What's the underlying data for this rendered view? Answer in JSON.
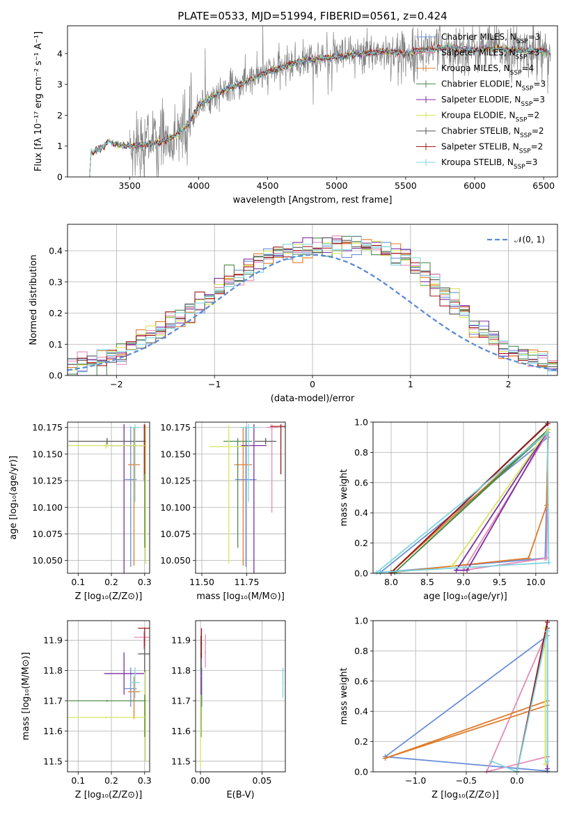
{
  "title": "PLATE=0533, MJD=51994, FIBERID=0561, z=0.424",
  "colors": {
    "chabrier_miles": "#6a8fd6",
    "salpeter_miles": "#e58ab8",
    "kroupa_miles": "#e07b28",
    "chabrier_elodie": "#4d8a4d",
    "salpeter_elodie": "#7a2fa0",
    "kroupa_elodie": "#d6e65a",
    "chabrier_stelib": "#555555",
    "salpeter_stelib": "#a01818",
    "kroupa_stelib": "#7dd6e0",
    "data": "#808080",
    "normal": "#5b8bd6",
    "grid": "#b0b0b0"
  },
  "chart_data": [
    {
      "id": "spectrum",
      "type": "line",
      "xlabel": "wavelength [Angstrom, rest frame]",
      "ylabel": "Flux [fλ 10⁻¹⁷ erg cm⁻² s⁻¹ A⁻¹]",
      "xlim": [
        3050,
        6600
      ],
      "ylim": [
        0,
        4.9
      ],
      "xticks": [
        "3500",
        "4000",
        "4500",
        "5000",
        "5500",
        "6000",
        "6500"
      ],
      "yticks": [
        "0",
        "1",
        "2",
        "3",
        "4"
      ],
      "legend_position": "top-right",
      "legend": [
        {
          "key": "chabrier_miles",
          "label": "Chabrier MILES, N",
          "sub": "SSP",
          "suffix": "=3"
        },
        {
          "key": "salpeter_miles",
          "label": "Salpeter MILES, N",
          "sub": "SSP",
          "suffix": "=3"
        },
        {
          "key": "kroupa_miles",
          "label": "Kroupa MILES, N",
          "sub": "SSP",
          "suffix": "=4"
        },
        {
          "key": "chabrier_elodie",
          "label": "Chabrier ELODIE, N",
          "sub": "SSP",
          "suffix": "=3"
        },
        {
          "key": "salpeter_elodie",
          "label": "Salpeter ELODIE, N",
          "sub": "SSP",
          "suffix": "=3"
        },
        {
          "key": "kroupa_elodie",
          "label": "Kroupa ELODIE, N",
          "sub": "SSP",
          "suffix": "=2"
        },
        {
          "key": "chabrier_stelib",
          "label": "Chabrier STELIB, N",
          "sub": "SSP",
          "suffix": "=2"
        },
        {
          "key": "salpeter_stelib",
          "label": "Salpeter STELIB, N",
          "sub": "SSP",
          "suffix": "=2"
        },
        {
          "key": "kroupa_stelib",
          "label": "Kroupa STELIB, N",
          "sub": "SSP",
          "suffix": "=3"
        }
      ],
      "model_continuum": {
        "x": [
          3210,
          3220,
          3300,
          3350,
          3400,
          3500,
          3600,
          3700,
          3800,
          3900,
          3950,
          4000,
          4100,
          4200,
          4300,
          4400,
          4500,
          4600,
          4700,
          4800,
          4900,
          5000,
          5100,
          5200,
          5300,
          5400,
          5500,
          5600,
          5700,
          5800,
          5900,
          6000,
          6100,
          6200,
          6300,
          6400,
          6550
        ],
        "y": [
          0.0,
          0.75,
          0.95,
          1.15,
          1.05,
          1.0,
          1.05,
          1.1,
          1.25,
          1.6,
          1.9,
          2.3,
          2.6,
          2.85,
          3.0,
          3.2,
          3.4,
          3.55,
          3.7,
          3.8,
          3.85,
          3.9,
          3.95,
          4.0,
          4.05,
          4.05,
          4.0,
          4.1,
          4.15,
          4.2,
          4.15,
          4.1,
          4.2,
          4.15,
          4.1,
          4.1,
          4.05
        ]
      },
      "data_range": [
        3500,
        6550
      ]
    },
    {
      "id": "residuals",
      "type": "histogram",
      "xlabel": "(data-model)/error",
      "ylabel": "Normed distribution",
      "xlim": [
        -2.5,
        2.5
      ],
      "ylim": [
        0,
        0.485
      ],
      "xticks": [
        "−2",
        "−1",
        "0",
        "1",
        "2"
      ],
      "yticks": [
        "0.0",
        "0.1",
        "0.2",
        "0.3",
        "0.4"
      ],
      "bin_width": 0.1,
      "reference_curve": {
        "label": "𝒩(0, 1)",
        "mean": 0,
        "sigma": 1,
        "scale": 0.97
      }
    },
    {
      "id": "age_vs_Z",
      "type": "scatter",
      "xlabel": "Z [log₁₀(Z/Z⊙)]",
      "ylabel": "age  [log₁₀(age/yr)]",
      "xlim": [
        0.068,
        0.315
      ],
      "ylim": [
        10.038,
        10.18
      ],
      "xticks": [
        "0.1",
        "0.2",
        "0.3"
      ],
      "yticks": [
        "10.050",
        "10.075",
        "10.100",
        "10.125",
        "10.150",
        "10.175"
      ],
      "points": [
        {
          "key": "chabrier_miles",
          "x": 0.258,
          "xerr": 0.018,
          "y": 10.126,
          "yerr": [
            0.082,
            0.05
          ]
        },
        {
          "key": "salpeter_miles",
          "x": 0.298,
          "xerr": 0.003,
          "y": 10.175,
          "yerr": [
            0.05,
            0.003
          ]
        },
        {
          "key": "kroupa_miles",
          "x": 0.268,
          "xerr": 0.018,
          "y": 10.14,
          "yerr": [
            0.095,
            0.035
          ]
        },
        {
          "key": "chabrier_elodie",
          "x": 0.3,
          "xerr": 0.002,
          "y": 10.162,
          "yerr": [
            0.1,
            0.015
          ]
        },
        {
          "key": "salpeter_elodie",
          "x": 0.238,
          "xerr": 0.06,
          "y": 10.158,
          "yerr": [
            0.12,
            0.02
          ]
        },
        {
          "key": "kroupa_elodie",
          "x": 0.303,
          "xerr": 0.002,
          "y": 10.157,
          "yerr": [
            0.11,
            0.02
          ]
        },
        {
          "key": "chabrier_stelib",
          "x": 0.187,
          "xerr": 0.116,
          "y": 10.162,
          "yerr": [
            0.003,
            0.003
          ]
        },
        {
          "key": "salpeter_stelib",
          "x": 0.3,
          "xerr": 0.002,
          "y": 10.176,
          "yerr": [
            0.045,
            0.002
          ]
        },
        {
          "key": "kroupa_stelib",
          "x": 0.271,
          "xerr": 0.015,
          "y": 10.175,
          "yerr": [
            0.07,
            0.003
          ]
        },
        {
          "key": "kroupa_elodie",
          "x": 0.184,
          "xerr": 0.116,
          "y": 10.158,
          "yerr": [
            0.003,
            0.003
          ]
        }
      ]
    },
    {
      "id": "age_vs_mass",
      "type": "scatter",
      "xlabel": "mass [log₁₀(M/M⊙)]",
      "ylabel": "",
      "xlim": [
        11.465,
        11.965
      ],
      "ylim": [
        10.038,
        10.18
      ],
      "xticks": [
        "11.50",
        "11.75"
      ],
      "yticks": [
        "10.050",
        "10.075",
        "10.100",
        "10.125",
        "10.150",
        "10.175"
      ],
      "points": [
        {
          "key": "chabrier_miles",
          "x": 11.745,
          "xerr": 0.06,
          "y": 10.126,
          "yerr": [
            0.082,
            0.05
          ]
        },
        {
          "key": "salpeter_miles",
          "x": 11.89,
          "xerr": 0.03,
          "y": 10.175,
          "yerr": [
            0.08,
            0.003
          ]
        },
        {
          "key": "kroupa_miles",
          "x": 11.73,
          "xerr": 0.05,
          "y": 10.14,
          "yerr": [
            0.095,
            0.035
          ]
        },
        {
          "key": "chabrier_elodie",
          "x": 11.7,
          "xerr": 0.08,
          "y": 10.162,
          "yerr": [
            0.1,
            0.003
          ]
        },
        {
          "key": "salpeter_elodie",
          "x": 11.79,
          "xerr": 0.07,
          "y": 10.158,
          "yerr": [
            0.12,
            0.02
          ]
        },
        {
          "key": "kroupa_elodie",
          "x": 11.65,
          "xerr": 0.11,
          "y": 10.157,
          "yerr": [
            0.11,
            0.02
          ]
        },
        {
          "key": "chabrier_stelib",
          "x": 11.855,
          "xerr": 0.06,
          "y": 10.162,
          "yerr": [
            0.003,
            0.003
          ]
        },
        {
          "key": "salpeter_stelib",
          "x": 11.94,
          "xerr": 0.06,
          "y": 10.176,
          "yerr": [
            0.045,
            0.002
          ]
        },
        {
          "key": "kroupa_stelib",
          "x": 11.76,
          "xerr": 0.05,
          "y": 10.175,
          "yerr": [
            0.07,
            0.003
          ]
        }
      ]
    },
    {
      "id": "weight_vs_age",
      "type": "line",
      "xlabel": "age  [log₁₀(age/yr)]",
      "ylabel": "mass weight",
      "xlim": [
        7.75,
        10.3
      ],
      "ylim": [
        0,
        1
      ],
      "xticks": [
        "8.0",
        "8.5",
        "9.0",
        "9.5",
        "10.0"
      ],
      "yticks": [
        "0.0",
        "0.2",
        "0.4",
        "0.6",
        "0.8",
        "1.0"
      ],
      "series": [
        {
          "key": "chabrier_miles",
          "x": [
            7.85,
            10.17,
            10.13,
            7.85
          ],
          "y": [
            0.005,
            0.9,
            0.1,
            0.005
          ]
        },
        {
          "key": "salpeter_miles",
          "x": [
            9.0,
            10.15,
            10.17,
            9.0
          ],
          "y": [
            0.02,
            0.1,
            0.93,
            0.02
          ]
        },
        {
          "key": "kroupa_miles",
          "x": [
            8.0,
            9.9,
            10.15,
            10.17,
            8.0
          ],
          "y": [
            0.005,
            0.1,
            0.45,
            0.95,
            0.005
          ]
        },
        {
          "key": "chabrier_elodie",
          "x": [
            8.05,
            10.17,
            10.15,
            8.05
          ],
          "y": [
            0.005,
            0.95,
            0.93,
            0.005
          ]
        },
        {
          "key": "salpeter_elodie",
          "x": [
            8.9,
            9.05,
            10.17,
            8.9
          ],
          "y": [
            0.02,
            0.02,
            0.95,
            0.02
          ]
        },
        {
          "key": "kroupa_elodie",
          "x": [
            8.85,
            10.17,
            8.85
          ],
          "y": [
            0.05,
            0.95,
            0.05
          ]
        },
        {
          "key": "chabrier_stelib",
          "x": [
            8.0,
            10.16
          ],
          "y": [
            0.005,
            0.99
          ]
        },
        {
          "key": "salpeter_stelib",
          "x": [
            8.0,
            10.17
          ],
          "y": [
            0.005,
            0.99
          ]
        },
        {
          "key": "kroupa_stelib",
          "x": [
            7.8,
            10.16,
            10.18,
            7.8
          ],
          "y": [
            0.005,
            0.93,
            0.07,
            0.005
          ]
        }
      ]
    },
    {
      "id": "mass_vs_Z",
      "type": "scatter",
      "xlabel": "Z [log₁₀(Z/Z⊙)]",
      "ylabel": "mass [log₁₀(M/M⊙)]",
      "xlim": [
        0.068,
        0.315
      ],
      "ylim": [
        11.465,
        11.965
      ],
      "xticks": [
        "0.1",
        "0.2",
        "0.3"
      ],
      "yticks": [
        "11.5",
        "11.6",
        "11.7",
        "11.8",
        "11.9"
      ],
      "points": [
        {
          "key": "chabrier_miles",
          "x": 0.258,
          "xerr": 0.018,
          "y": 11.74,
          "yerr": [
            0.06,
            0.07
          ]
        },
        {
          "key": "salpeter_miles",
          "x": 0.298,
          "xerr": 0.03,
          "y": 11.91,
          "yerr": [
            0.04,
            0.02
          ]
        },
        {
          "key": "kroupa_miles",
          "x": 0.268,
          "xerr": 0.018,
          "y": 11.73,
          "yerr": [
            0.09,
            0.05
          ]
        },
        {
          "key": "chabrier_elodie",
          "x": 0.3,
          "xerr": 0.002,
          "y": 11.7,
          "yerr": [
            0.12,
            0.02
          ]
        },
        {
          "key": "salpeter_elodie",
          "x": 0.238,
          "xerr": 0.06,
          "y": 11.79,
          "yerr": [
            0.07,
            0.07
          ]
        },
        {
          "key": "kroupa_elodie",
          "x": 0.303,
          "xerr": 0.002,
          "y": 11.65,
          "yerr": [
            0.15,
            0.15
          ]
        },
        {
          "key": "chabrier_stelib",
          "x": 0.3,
          "xerr": 0.02,
          "y": 11.855,
          "yerr": [
            0.06,
            0.06
          ]
        },
        {
          "key": "salpeter_stelib",
          "x": 0.3,
          "xerr": 0.02,
          "y": 11.94,
          "yerr": [
            0.06,
            0.002
          ]
        },
        {
          "key": "kroupa_stelib",
          "x": 0.271,
          "xerr": 0.015,
          "y": 11.76,
          "yerr": [
            0.05,
            0.05
          ]
        },
        {
          "key": "chabrier_elodie",
          "x": 0.187,
          "xerr": 0.116,
          "y": 11.7,
          "yerr": [
            0.003,
            0.003
          ]
        },
        {
          "key": "kroupa_elodie",
          "x": 0.184,
          "xerr": 0.116,
          "y": 11.645,
          "yerr": [
            0.003,
            0.003
          ]
        }
      ]
    },
    {
      "id": "mass_vs_ebv",
      "type": "scatter",
      "xlabel": "E(B-V)",
      "ylabel": "",
      "xlim": [
        -0.004,
        0.069
      ],
      "ylim": [
        11.465,
        11.965
      ],
      "xticks": [
        "0.00",
        "0.05"
      ],
      "yticks": [
        "11.5",
        "11.6",
        "11.7",
        "11.8",
        "11.9"
      ],
      "points": [
        {
          "key": "chabrier_miles",
          "x": 0.001,
          "xerr": 0.0005,
          "y": 11.74,
          "yerr": [
            0.06,
            0.07
          ]
        },
        {
          "key": "salpeter_miles",
          "x": 0.004,
          "xerr": 0.0005,
          "y": 11.86,
          "yerr": [
            0.05,
            0.06
          ]
        },
        {
          "key": "kroupa_miles",
          "x": 0.0005,
          "xerr": 0.0005,
          "y": 11.73,
          "yerr": [
            0.09,
            0.05
          ]
        },
        {
          "key": "chabrier_elodie",
          "x": 0.0005,
          "xerr": 0.0005,
          "y": 11.7,
          "yerr": [
            0.12,
            0.02
          ]
        },
        {
          "key": "salpeter_elodie",
          "x": 0.0006,
          "xerr": 0.0005,
          "y": 11.79,
          "yerr": [
            0.07,
            0.07
          ]
        },
        {
          "key": "kroupa_elodie",
          "x": 0.0,
          "xerr": 0.0005,
          "y": 11.6,
          "yerr": [
            0.12,
            0.12
          ]
        },
        {
          "key": "chabrier_stelib",
          "x": 0.0005,
          "xerr": 0.0005,
          "y": 11.855,
          "yerr": [
            0.06,
            0.06
          ]
        },
        {
          "key": "salpeter_stelib",
          "x": 0.0008,
          "xerr": 0.0005,
          "y": 11.89,
          "yerr": [
            0.05,
            0.05
          ]
        },
        {
          "key": "kroupa_stelib",
          "x": 0.067,
          "xerr": 0.0005,
          "y": 11.76,
          "yerr": [
            0.05,
            0.05
          ]
        }
      ]
    },
    {
      "id": "weight_vs_Z",
      "type": "line",
      "xlabel": "Z [log₁₀(Z/Z⊙)]",
      "ylabel": "mass weight",
      "xlim": [
        -1.42,
        0.4
      ],
      "ylim": [
        0,
        1
      ],
      "xticks": [
        "−1.0",
        "−0.5",
        "0.0"
      ],
      "yticks": [
        "0.0",
        "0.2",
        "0.4",
        "0.6",
        "0.8",
        "1.0"
      ],
      "series": [
        {
          "key": "chabrier_miles",
          "x": [
            -1.3,
            0.3,
            0.3,
            -1.3
          ],
          "y": [
            0.1,
            0.9,
            0.005,
            0.1
          ]
        },
        {
          "key": "salpeter_miles",
          "x": [
            -0.3,
            0.3,
            0.3,
            -0.3
          ],
          "y": [
            0.0,
            0.93,
            0.1,
            0.0
          ]
        },
        {
          "key": "kroupa_miles",
          "x": [
            -1.3,
            0.3,
            0.3,
            0.3,
            -1.3
          ],
          "y": [
            0.09,
            0.44,
            0.1,
            0.47,
            0.09
          ]
        },
        {
          "key": "chabrier_elodie",
          "x": [
            0.3,
            0.3
          ],
          "y": [
            0.02,
            0.95
          ]
        },
        {
          "key": "salpeter_elodie",
          "x": [
            0.3,
            0.3
          ],
          "y": [
            0.02,
            0.95
          ]
        },
        {
          "key": "kroupa_elodie",
          "x": [
            0.28,
            0.28
          ],
          "y": [
            0.05,
            0.95
          ]
        },
        {
          "key": "chabrier_stelib",
          "x": [
            0.0,
            0.3
          ],
          "y": [
            0.0,
            0.99
          ]
        },
        {
          "key": "salpeter_stelib",
          "x": [
            0.0,
            0.3
          ],
          "y": [
            0.0,
            0.99
          ]
        },
        {
          "key": "kroupa_stelib",
          "x": [
            -0.25,
            0.0,
            0.3,
            0.3
          ],
          "y": [
            0.07,
            0.0,
            0.93,
            0.07
          ]
        }
      ]
    }
  ]
}
